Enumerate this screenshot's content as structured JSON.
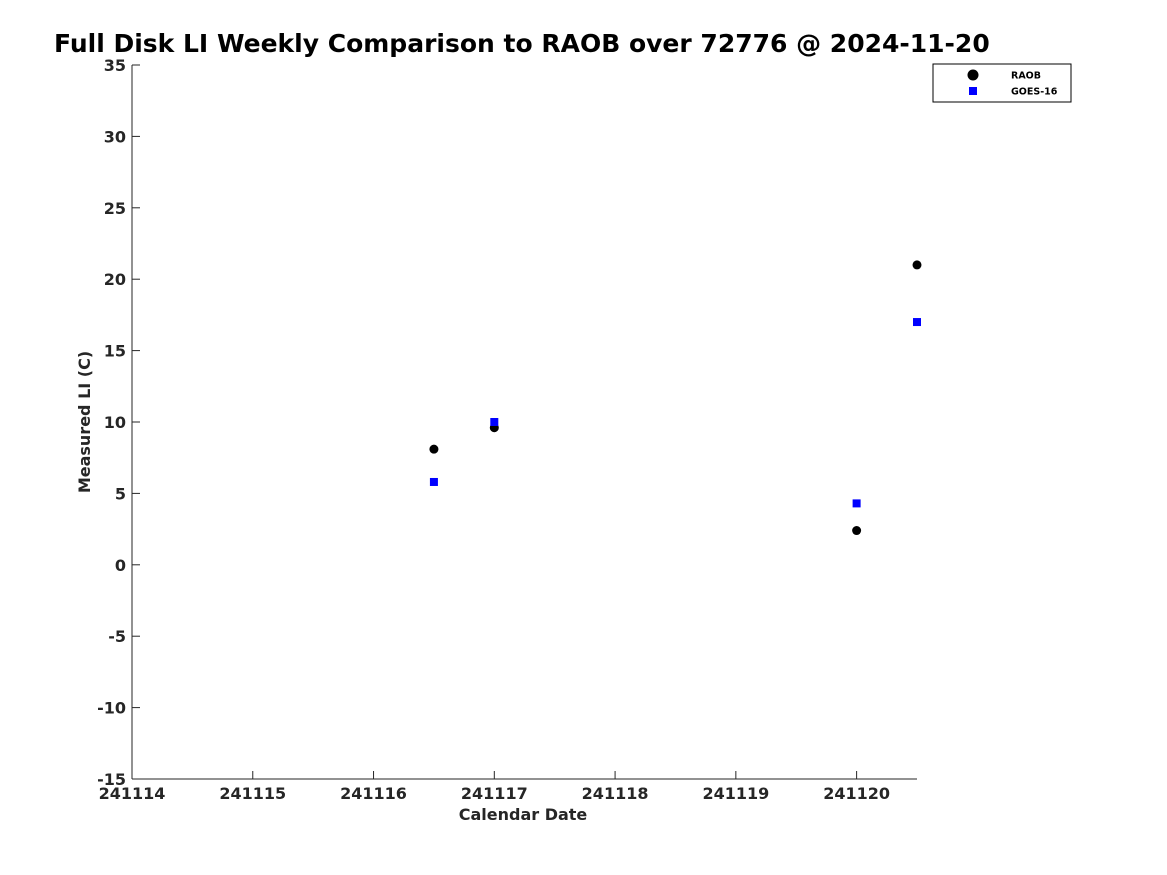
{
  "chart_data": {
    "type": "scatter",
    "title": "Full Disk LI Weekly Comparison to RAOB over 72776 @ 2024-11-20",
    "xlabel": "Calendar Date",
    "ylabel": "Measured LI (C)",
    "xlim": [
      241114,
      241120.5
    ],
    "ylim": [
      -15,
      35
    ],
    "xticks": [
      241114,
      241115,
      241116,
      241117,
      241118,
      241119,
      241120
    ],
    "xtick_labels": [
      "241114",
      "241115",
      "241116",
      "241117",
      "241118",
      "241119",
      "241120"
    ],
    "yticks": [
      -15,
      -10,
      -5,
      0,
      5,
      10,
      15,
      20,
      25,
      30,
      35
    ],
    "ytick_labels": [
      "-15",
      "-10",
      "-5",
      "0",
      "5",
      "10",
      "15",
      "20",
      "25",
      "30",
      "35"
    ],
    "grid": false,
    "legend_position": "top-right",
    "series": [
      {
        "name": "RAOB",
        "marker": "circle",
        "color": "#000000",
        "x": [
          241116.5,
          241117,
          241120,
          241120.5
        ],
        "y": [
          8.1,
          9.6,
          2.4,
          21.0
        ]
      },
      {
        "name": "GOES-16",
        "marker": "square",
        "color": "#0000ff",
        "x": [
          241116.5,
          241117,
          241120,
          241120.5
        ],
        "y": [
          5.8,
          10.0,
          4.3,
          17.0
        ]
      }
    ]
  }
}
